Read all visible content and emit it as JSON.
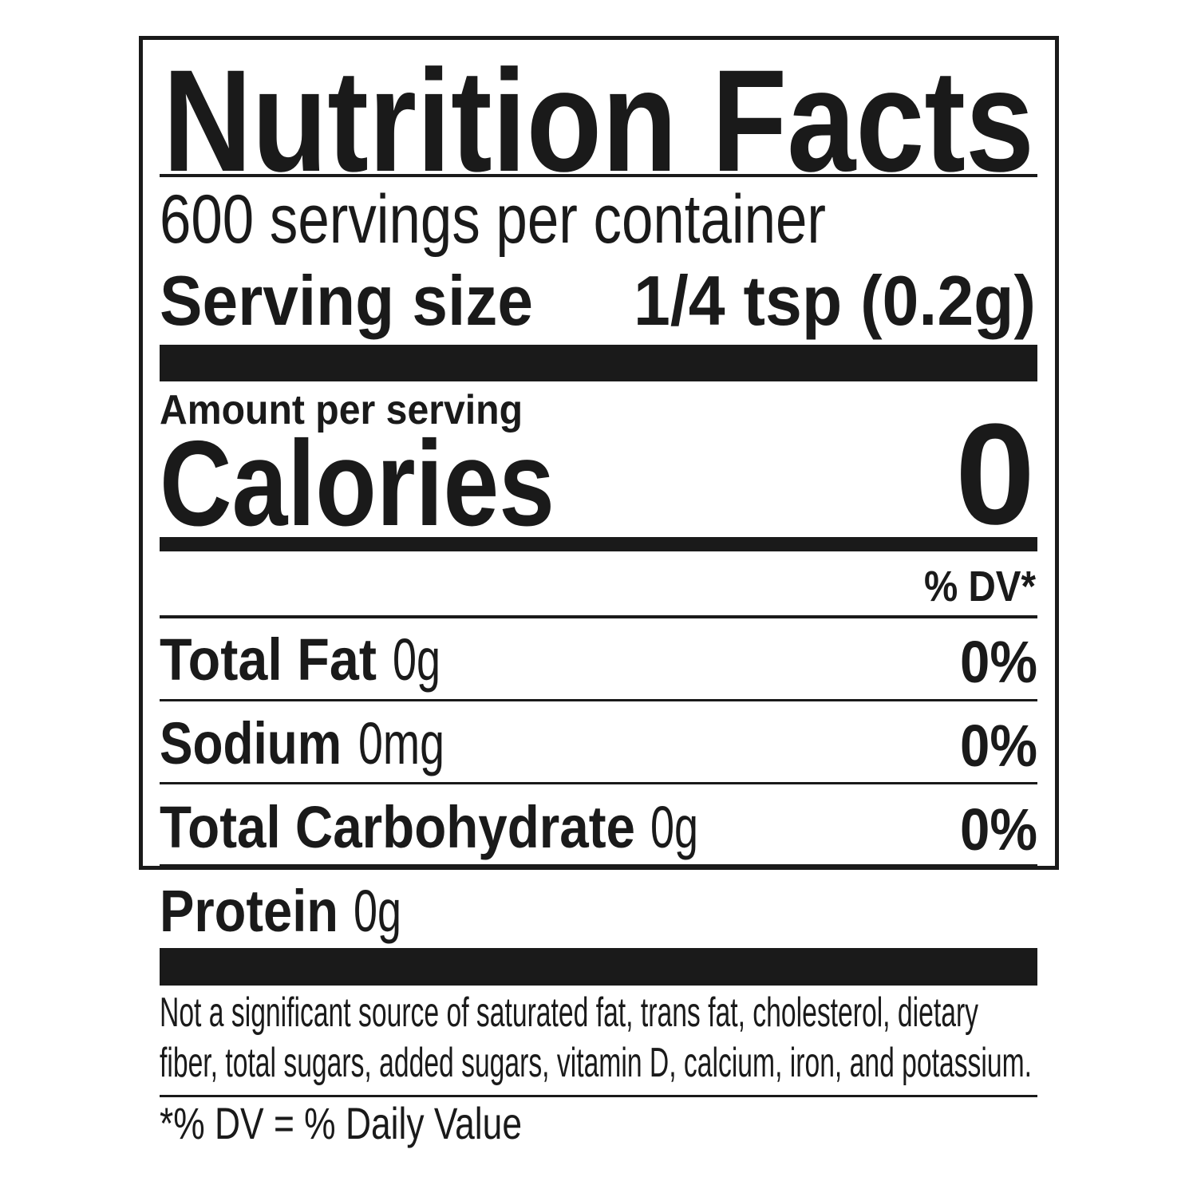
{
  "title": "Nutrition Facts",
  "servings_per_container": "600 servings per container",
  "serving_size": {
    "label": "Serving size",
    "value": "1/4 tsp (0.2g)"
  },
  "amount_per_serving": "Amount per serving",
  "calories": {
    "label": "Calories",
    "value": "0"
  },
  "dv_header": "% DV*",
  "nutrients": [
    {
      "name": "Total Fat",
      "amount": "0g",
      "dv": "0%"
    },
    {
      "name": "Sodium",
      "amount": "0mg",
      "dv": "0%"
    },
    {
      "name": "Total Carbohydrate",
      "amount": "0g",
      "dv": "0%"
    },
    {
      "name": "Protein",
      "amount": "0g"
    }
  ],
  "footnote": [
    "Not a significant source of saturated fat, trans fat, cholesterol, dietary",
    "fiber, total sugars, added sugars, vitamin D, calcium, iron, and potassium."
  ],
  "dv_definition": "*% DV = % Daily Value"
}
